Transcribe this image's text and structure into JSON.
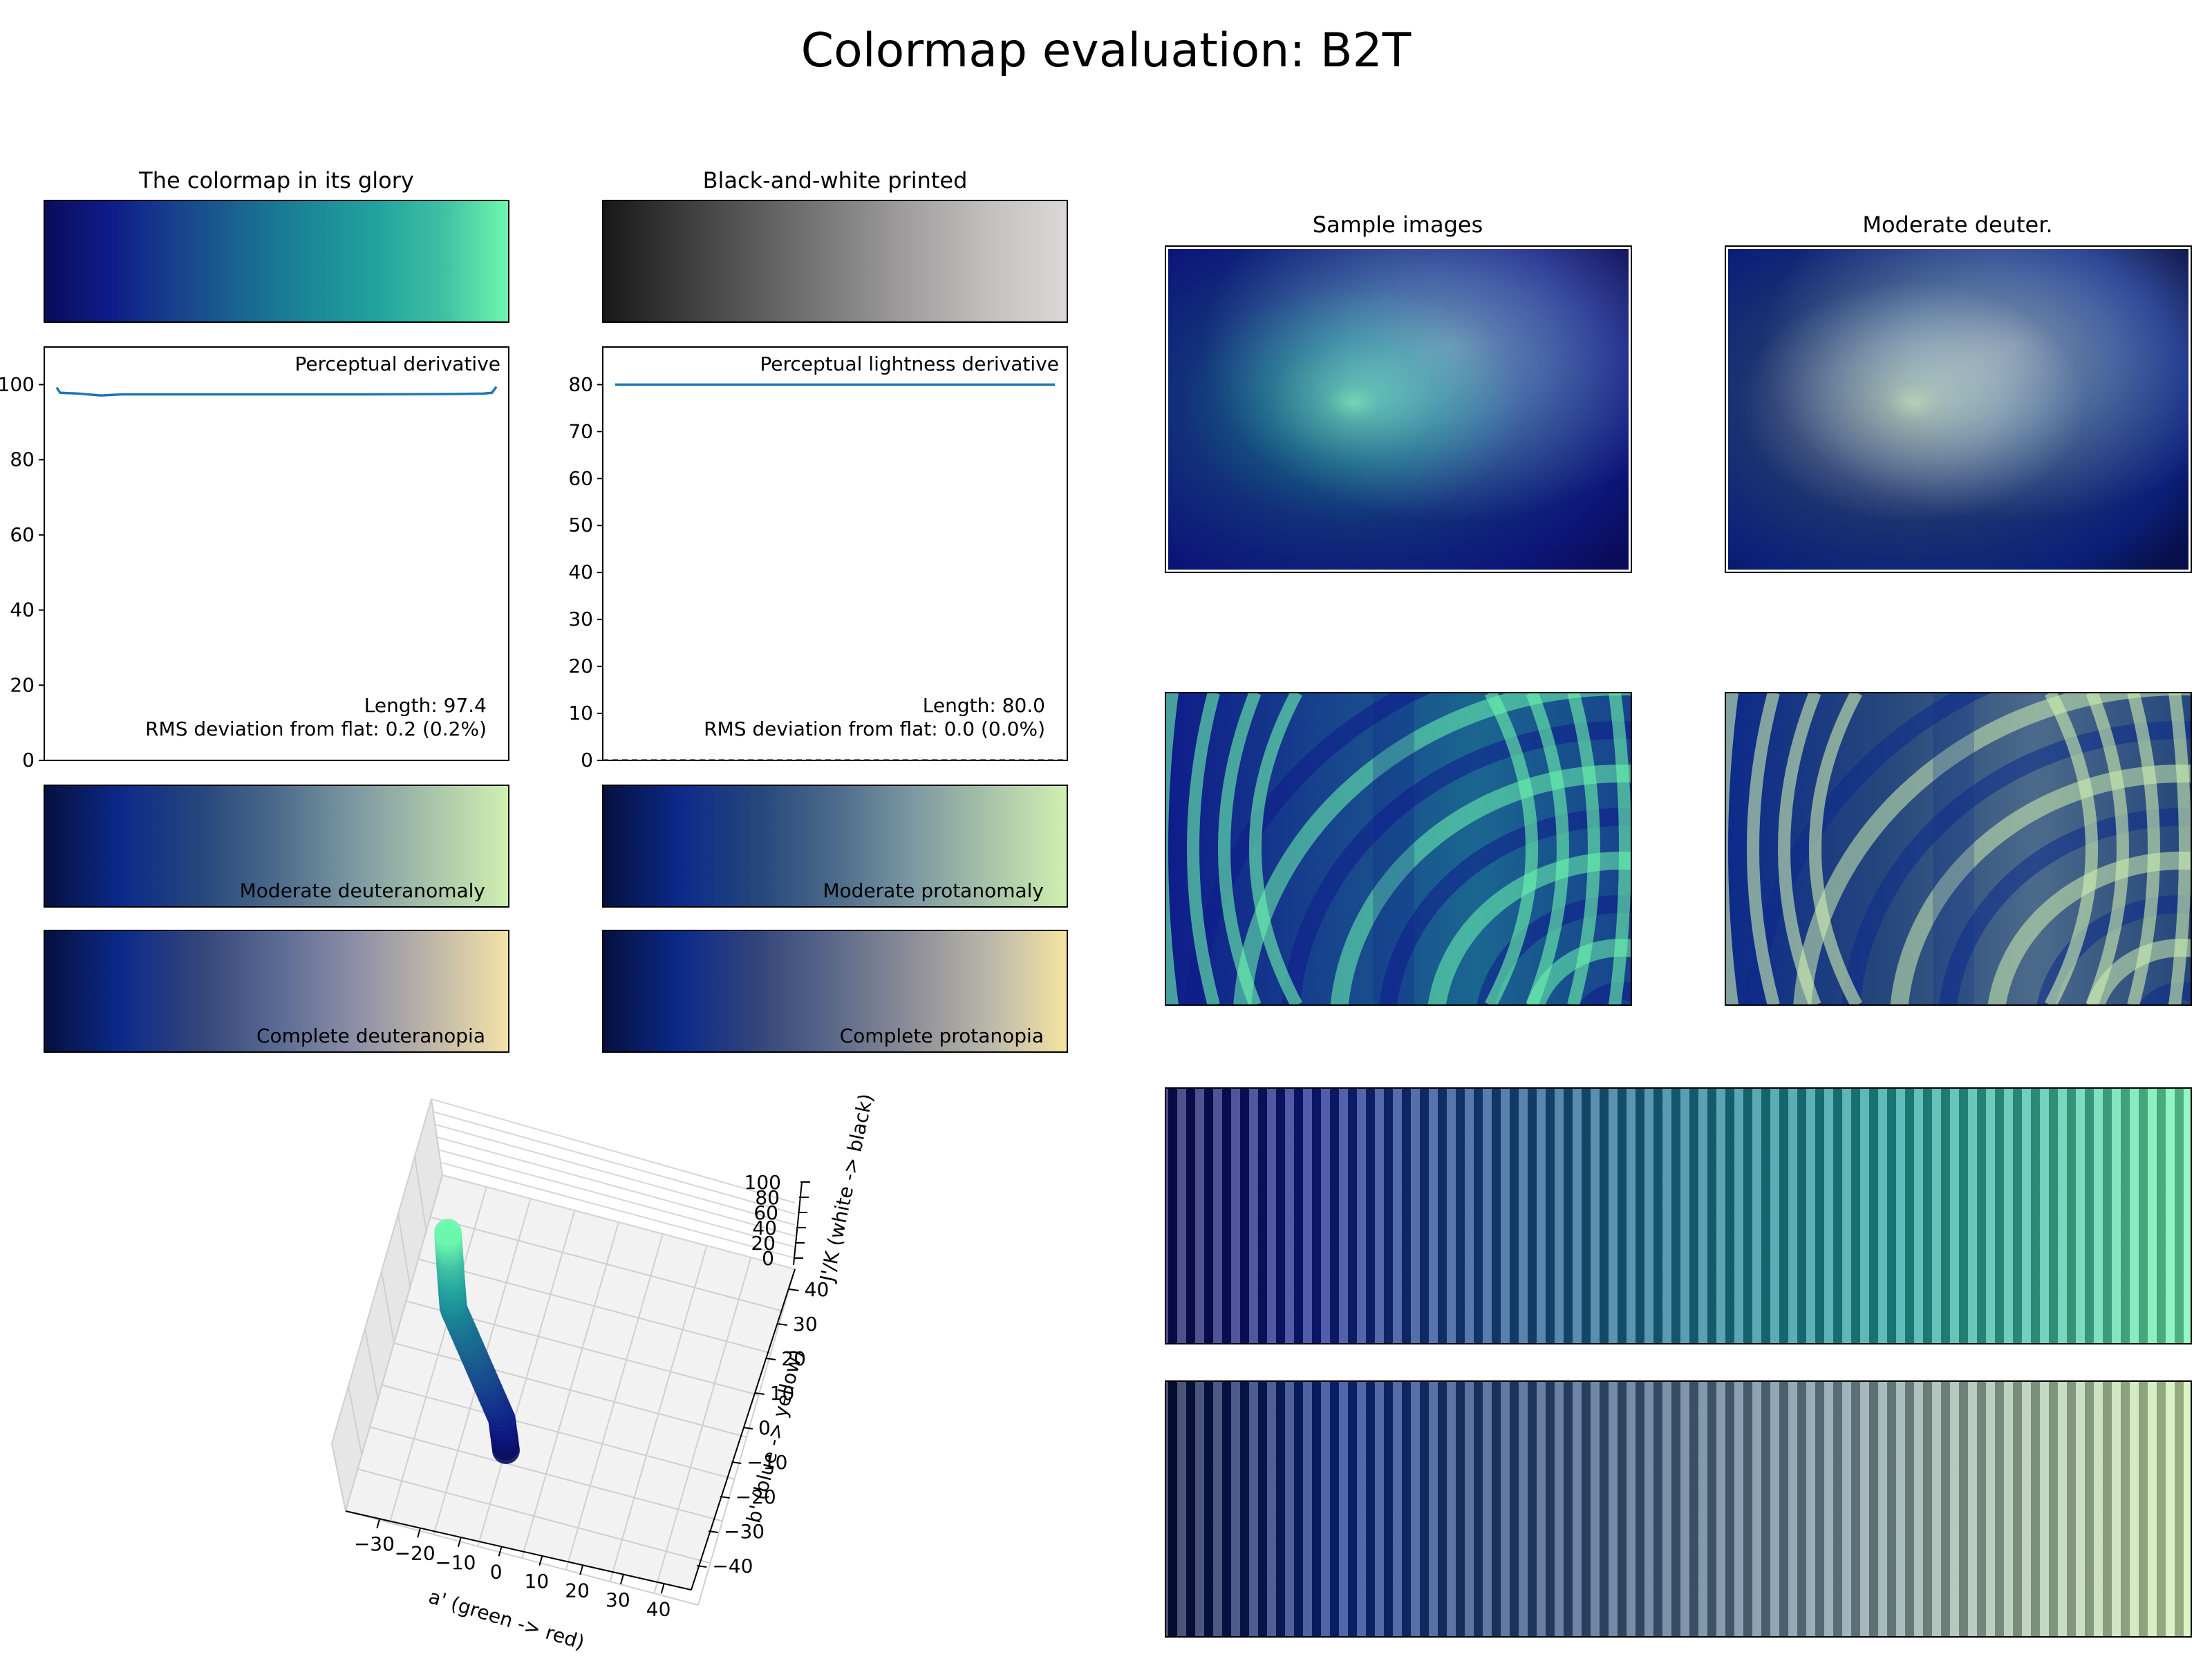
{
  "figure_title": "Colormap evaluation: B2T",
  "colors": {
    "colormap": [
      "#0a0c5a",
      "#0e1c8a",
      "#17428c",
      "#1a6690",
      "#1b8896",
      "#22a29e",
      "#3fc0a4",
      "#6ef7ae"
    ],
    "grayscale": [
      "#181818",
      "#3a3a3a",
      "#5c5c5c",
      "#7f7e7e",
      "#a2a0a0",
      "#c3c0c0",
      "#dcd8d8"
    ],
    "deuteranomaly": [
      "#06103e",
      "#0c2a8a",
      "#25467c",
      "#4c6a8a",
      "#7c98a2",
      "#a8c4aa",
      "#d0f0b0"
    ],
    "protanomaly": [
      "#06103e",
      "#0c2a8a",
      "#25467c",
      "#4c6a8a",
      "#7c98a2",
      "#a8c4aa",
      "#d0f0b0"
    ],
    "deuteranopia": [
      "#06103e",
      "#0c2a8a",
      "#33457a",
      "#5a6a92",
      "#8c8ea6",
      "#beb6a8",
      "#f4e2a8"
    ],
    "protanopia": [
      "#06103e",
      "#0c2a8a",
      "#33457a",
      "#5c6a8a",
      "#8e8e98",
      "#bab8aa",
      "#f6e4a2"
    ],
    "line": "#1f77b4",
    "pane": "#f2f2f2"
  },
  "chart_data": [
    {
      "type": "colorbar",
      "title": "The colormap in its glory"
    },
    {
      "type": "colorbar",
      "title": "Black-and-white printed"
    },
    {
      "type": "line",
      "label": "Perceptual derivative",
      "x": [
        0,
        0.008,
        0.05,
        0.1,
        0.15,
        0.3,
        0.5,
        0.7,
        0.9,
        0.97,
        0.99,
        1.0
      ],
      "y": [
        99.2,
        97.8,
        97.6,
        97.1,
        97.4,
        97.4,
        97.4,
        97.4,
        97.5,
        97.6,
        97.8,
        99.4
      ],
      "ylim": [
        0,
        110
      ],
      "yticks": [
        0,
        20,
        40,
        60,
        80,
        100
      ],
      "annotation_lines": [
        "Length: 97.4",
        "RMS deviation from flat: 0.2 (0.2%)"
      ]
    },
    {
      "type": "line",
      "label": "Perceptual lightness derivative",
      "x": [
        0,
        1
      ],
      "y": [
        80.0,
        80.0
      ],
      "ylim": [
        0,
        88
      ],
      "yticks": [
        0,
        10,
        20,
        30,
        40,
        50,
        60,
        70,
        80
      ],
      "annotation_lines": [
        "Length: 80.0",
        "RMS deviation from flat: 0.0 (0.0%)"
      ]
    },
    {
      "type": "colorbar",
      "label": "Moderate deuteranomaly"
    },
    {
      "type": "colorbar",
      "label": "Moderate protanomaly"
    },
    {
      "type": "colorbar",
      "label": "Complete deuteranopia"
    },
    {
      "type": "colorbar",
      "label": "Complete protanopia"
    },
    {
      "type": "scatter3d",
      "xlabel": "a' (green -> red)",
      "ylabel": "b' (blue -> yellow)",
      "zlabel": "J'/K (white -> black)",
      "xticks": [
        -30,
        -20,
        -10,
        0,
        10,
        20,
        30,
        40
      ],
      "yticks": [
        -40,
        -30,
        -20,
        -10,
        0,
        10,
        20,
        30,
        40
      ],
      "zticks": [
        0,
        20,
        40,
        60,
        80,
        100
      ],
      "grid": true
    },
    {
      "type": "image",
      "title": "Sample images"
    },
    {
      "type": "image",
      "title": "Moderate deuter."
    }
  ]
}
